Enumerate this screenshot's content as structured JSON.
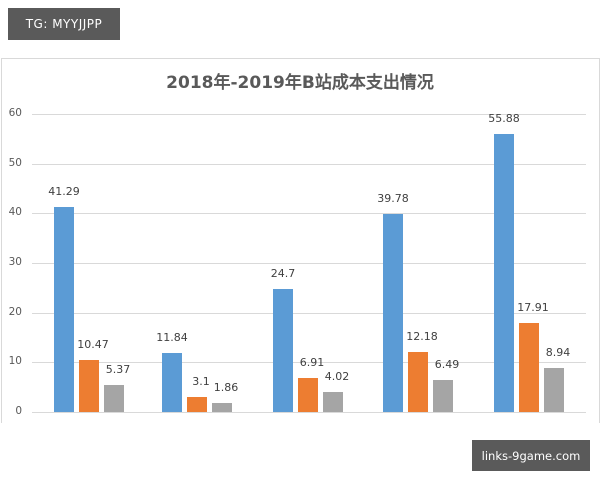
{
  "watermarks": {
    "top_left": "TG: MYYJJPP",
    "bottom_right": "links-9game.com"
  },
  "chart_data": {
    "type": "bar",
    "title": "2018年-2019年B站成本支出情况",
    "xlabel": "",
    "ylabel": "",
    "ylim": [
      0,
      60
    ],
    "yticks": [
      0,
      10,
      20,
      30,
      40,
      50,
      60
    ],
    "grid": true,
    "legend": "none visible",
    "categories": [
      "",
      "",
      "",
      "",
      ""
    ],
    "series": [
      {
        "name": "series-1",
        "color": "#5b9bd5",
        "values": [
          41.29,
          11.84,
          24.7,
          39.78,
          55.88
        ]
      },
      {
        "name": "series-2",
        "color": "#ed7d31",
        "values": [
          10.47,
          3.1,
          6.91,
          12.18,
          17.91
        ]
      },
      {
        "name": "series-3",
        "color": "#a5a5a5",
        "values": [
          5.37,
          1.86,
          4.02,
          6.49,
          8.94
        ]
      }
    ],
    "value_labels": [
      [
        "41.29",
        "10.47",
        "5.37"
      ],
      [
        "11.84",
        "3.1",
        "1.86"
      ],
      [
        "24.7",
        "6.91",
        "4.02"
      ],
      [
        "39.78",
        "12.18",
        "6.49"
      ],
      [
        "55.88",
        "17.91",
        "8.94"
      ]
    ]
  }
}
